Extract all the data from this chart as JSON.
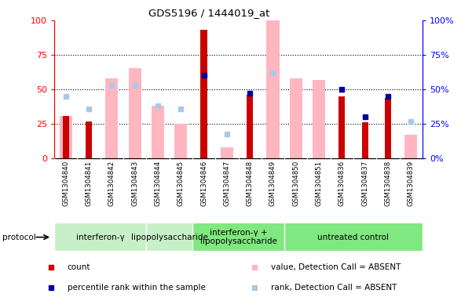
{
  "title": "GDS5196 / 1444019_at",
  "samples": [
    "GSM1304840",
    "GSM1304841",
    "GSM1304842",
    "GSM1304843",
    "GSM1304844",
    "GSM1304845",
    "GSM1304846",
    "GSM1304847",
    "GSM1304848",
    "GSM1304849",
    "GSM1304850",
    "GSM1304851",
    "GSM1304836",
    "GSM1304837",
    "GSM1304838",
    "GSM1304839"
  ],
  "red_bars": [
    31,
    27,
    0,
    0,
    0,
    0,
    93,
    0,
    46,
    0,
    0,
    0,
    45,
    26,
    44,
    0
  ],
  "pink_bars": [
    31,
    0,
    58,
    65,
    38,
    25,
    0,
    8,
    0,
    100,
    58,
    57,
    0,
    0,
    0,
    17
  ],
  "blue_squares": [
    null,
    null,
    null,
    null,
    null,
    null,
    60,
    null,
    47,
    null,
    null,
    null,
    50,
    30,
    45,
    null
  ],
  "light_blue_squares": [
    45,
    36,
    53,
    53,
    38,
    36,
    null,
    18,
    null,
    62,
    null,
    null,
    null,
    null,
    null,
    27
  ],
  "proto_boundaries": [
    {
      "label": "interferon-γ",
      "start": 0,
      "end": 4,
      "color": "#c8f0c8"
    },
    {
      "label": "lipopolysaccharide",
      "start": 4,
      "end": 6,
      "color": "#c8f0c8"
    },
    {
      "label": "interferon-γ +\nlipopolysaccharide",
      "start": 6,
      "end": 10,
      "color": "#80e880"
    },
    {
      "label": "untreated control",
      "start": 10,
      "end": 16,
      "color": "#80e880"
    }
  ],
  "ylim": [
    0,
    100
  ],
  "y_ticks": [
    0,
    25,
    50,
    75,
    100
  ],
  "red_color": "#cc0000",
  "pink_color": "#ffb6c1",
  "blue_color": "#000099",
  "light_blue_color": "#aac8e8",
  "bg_color": "#d8d8d8",
  "plot_bg": "#ffffff",
  "legend_items": [
    {
      "label": "count",
      "color": "#cc0000"
    },
    {
      "label": "percentile rank within the sample",
      "color": "#000099"
    },
    {
      "label": "value, Detection Call = ABSENT",
      "color": "#ffb6c1"
    },
    {
      "label": "rank, Detection Call = ABSENT",
      "color": "#aac8e8"
    }
  ]
}
